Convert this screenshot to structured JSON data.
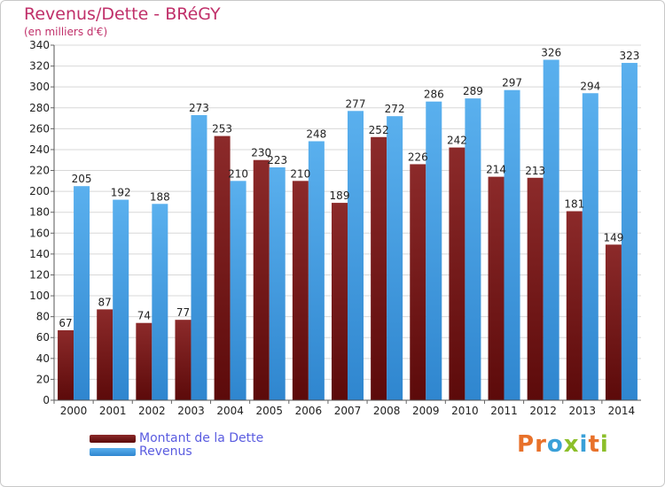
{
  "title": "Revenus/Dette - BRéGY",
  "subtitle": "(en milliers d'€)",
  "logo": "Proxiti",
  "colors": {
    "dette": "#7a1a1a",
    "revenus": "#4aa3e6",
    "title": "#c0306a",
    "legend_text": "#5a5ce0"
  },
  "chart_data": {
    "type": "bar",
    "categories": [
      "2000",
      "2001",
      "2002",
      "2003",
      "2004",
      "2005",
      "2006",
      "2007",
      "2008",
      "2009",
      "2010",
      "2011",
      "2012",
      "2013",
      "2014"
    ],
    "series": [
      {
        "name": "Montant de la Dette",
        "values": [
          67,
          87,
          74,
          77,
          253,
          230,
          210,
          189,
          252,
          226,
          242,
          214,
          213,
          181,
          149
        ]
      },
      {
        "name": "Revenus",
        "values": [
          205,
          192,
          188,
          273,
          210,
          223,
          248,
          277,
          272,
          286,
          289,
          297,
          326,
          294,
          323
        ]
      }
    ],
    "ylim": [
      0,
      340
    ],
    "yticks": [
      0,
      20,
      40,
      60,
      80,
      100,
      120,
      140,
      160,
      180,
      200,
      220,
      240,
      260,
      280,
      300,
      320,
      340
    ],
    "grid": true,
    "legend": "bottom-left"
  }
}
